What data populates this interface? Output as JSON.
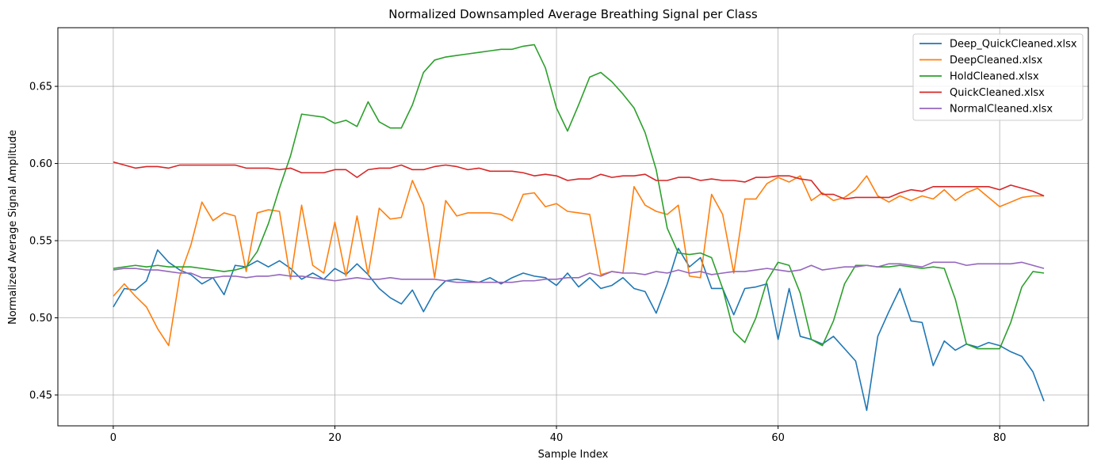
{
  "chart_data": {
    "type": "line",
    "title": "Normalized Downsampled Average Breathing Signal per Class",
    "xlabel": "Sample Index",
    "ylabel": "Normalized Average Signal Amplitude",
    "xlim": [
      -5,
      88
    ],
    "ylim": [
      0.43,
      0.688
    ],
    "xticks": [
      0,
      20,
      40,
      60,
      80
    ],
    "yticks": [
      0.45,
      0.5,
      0.55,
      0.6,
      0.65
    ],
    "xtick_labels": [
      "0",
      "20",
      "40",
      "60",
      "80"
    ],
    "ytick_labels": [
      "0.45",
      "0.50",
      "0.55",
      "0.60",
      "0.65"
    ],
    "grid": true,
    "legend_position": "top-right",
    "series": [
      {
        "name": "Deep_QuickCleaned.xlsx",
        "color": "#1f77b4",
        "values": [
          0.507,
          0.519,
          0.518,
          0.524,
          0.544,
          0.536,
          0.531,
          0.528,
          0.522,
          0.526,
          0.515,
          0.534,
          0.533,
          0.537,
          0.533,
          0.537,
          0.532,
          0.525,
          0.529,
          0.525,
          0.532,
          0.528,
          0.535,
          0.528,
          0.519,
          0.513,
          0.509,
          0.518,
          0.504,
          0.517,
          0.524,
          0.525,
          0.524,
          0.523,
          0.526,
          0.522,
          0.526,
          0.529,
          0.527,
          0.526,
          0.521,
          0.529,
          0.52,
          0.526,
          0.519,
          0.521,
          0.526,
          0.519,
          0.517,
          0.503,
          0.522,
          0.545,
          0.533,
          0.539,
          0.519,
          0.519,
          0.502,
          0.519,
          0.52,
          0.522,
          0.486,
          0.519,
          0.488,
          0.486,
          0.483,
          0.488,
          0.48,
          0.472,
          0.44,
          0.488,
          0.504,
          0.519,
          0.498,
          0.497,
          0.469,
          0.485,
          0.479,
          0.483,
          0.481,
          0.484,
          0.482,
          0.478,
          0.475,
          0.465,
          0.446
        ]
      },
      {
        "name": "DeepCleaned.xlsx",
        "color": "#ff7f0e",
        "values": [
          0.514,
          0.522,
          0.514,
          0.507,
          0.493,
          0.482,
          0.527,
          0.547,
          0.575,
          0.563,
          0.568,
          0.566,
          0.53,
          0.568,
          0.57,
          0.569,
          0.525,
          0.573,
          0.534,
          0.529,
          0.562,
          0.527,
          0.566,
          0.528,
          0.571,
          0.564,
          0.565,
          0.589,
          0.573,
          0.526,
          0.576,
          0.566,
          0.568,
          0.568,
          0.568,
          0.567,
          0.563,
          0.58,
          0.581,
          0.572,
          0.574,
          0.569,
          0.568,
          0.567,
          0.528,
          0.53,
          0.529,
          0.585,
          0.573,
          0.569,
          0.567,
          0.573,
          0.527,
          0.526,
          0.58,
          0.567,
          0.529,
          0.577,
          0.577,
          0.587,
          0.591,
          0.588,
          0.592,
          0.576,
          0.581,
          0.576,
          0.578,
          0.583,
          0.592,
          0.579,
          0.575,
          0.579,
          0.576,
          0.579,
          0.577,
          0.583,
          0.576,
          0.581,
          0.584,
          0.578,
          0.572,
          0.575,
          0.578,
          0.579,
          0.579
        ]
      },
      {
        "name": "HoldCleaned.xlsx",
        "color": "#2ca02c",
        "values": [
          0.532,
          0.533,
          0.534,
          0.533,
          0.534,
          0.533,
          0.533,
          0.533,
          0.532,
          0.531,
          0.53,
          0.531,
          0.533,
          0.543,
          0.561,
          0.584,
          0.605,
          0.632,
          0.631,
          0.63,
          0.626,
          0.628,
          0.624,
          0.64,
          0.627,
          0.623,
          0.623,
          0.638,
          0.659,
          0.667,
          0.669,
          0.67,
          0.671,
          0.672,
          0.673,
          0.674,
          0.674,
          0.676,
          0.677,
          0.662,
          0.636,
          0.621,
          0.638,
          0.656,
          0.659,
          0.653,
          0.645,
          0.636,
          0.62,
          0.596,
          0.558,
          0.542,
          0.541,
          0.542,
          0.539,
          0.519,
          0.491,
          0.484,
          0.5,
          0.524,
          0.536,
          0.534,
          0.516,
          0.486,
          0.482,
          0.498,
          0.522,
          0.534,
          0.534,
          0.533,
          0.533,
          0.534,
          0.533,
          0.532,
          0.533,
          0.532,
          0.512,
          0.483,
          0.48,
          0.48,
          0.48,
          0.497,
          0.52,
          0.53,
          0.529
        ]
      },
      {
        "name": "QuickCleaned.xlsx",
        "color": "#d62728",
        "values": [
          0.601,
          0.599,
          0.597,
          0.598,
          0.598,
          0.597,
          0.599,
          0.599,
          0.599,
          0.599,
          0.599,
          0.599,
          0.597,
          0.597,
          0.597,
          0.596,
          0.597,
          0.594,
          0.594,
          0.594,
          0.596,
          0.596,
          0.591,
          0.596,
          0.597,
          0.597,
          0.599,
          0.596,
          0.596,
          0.598,
          0.599,
          0.598,
          0.596,
          0.597,
          0.595,
          0.595,
          0.595,
          0.594,
          0.592,
          0.593,
          0.592,
          0.589,
          0.59,
          0.59,
          0.593,
          0.591,
          0.592,
          0.592,
          0.593,
          0.589,
          0.589,
          0.591,
          0.591,
          0.589,
          0.59,
          0.589,
          0.589,
          0.588,
          0.591,
          0.591,
          0.592,
          0.592,
          0.59,
          0.589,
          0.58,
          0.58,
          0.577,
          0.578,
          0.578,
          0.578,
          0.578,
          0.581,
          0.583,
          0.582,
          0.585,
          0.585,
          0.585,
          0.585,
          0.585,
          0.585,
          0.583,
          0.586,
          0.584,
          0.582,
          0.579
        ]
      },
      {
        "name": "NormalCleaned.xlsx",
        "color": "#9467bd",
        "values": [
          0.531,
          0.532,
          0.532,
          0.531,
          0.531,
          0.53,
          0.529,
          0.529,
          0.526,
          0.526,
          0.527,
          0.527,
          0.526,
          0.527,
          0.527,
          0.528,
          0.527,
          0.527,
          0.526,
          0.525,
          0.524,
          0.525,
          0.526,
          0.525,
          0.525,
          0.526,
          0.525,
          0.525,
          0.525,
          0.525,
          0.524,
          0.523,
          0.523,
          0.523,
          0.523,
          0.523,
          0.523,
          0.524,
          0.524,
          0.525,
          0.525,
          0.526,
          0.526,
          0.529,
          0.527,
          0.53,
          0.529,
          0.529,
          0.528,
          0.53,
          0.529,
          0.531,
          0.529,
          0.53,
          0.528,
          0.529,
          0.53,
          0.53,
          0.531,
          0.532,
          0.531,
          0.53,
          0.531,
          0.534,
          0.531,
          0.532,
          0.533,
          0.533,
          0.534,
          0.533,
          0.535,
          0.535,
          0.534,
          0.533,
          0.536,
          0.536,
          0.536,
          0.534,
          0.535,
          0.535,
          0.535,
          0.535,
          0.536,
          0.534,
          0.532
        ]
      }
    ]
  }
}
